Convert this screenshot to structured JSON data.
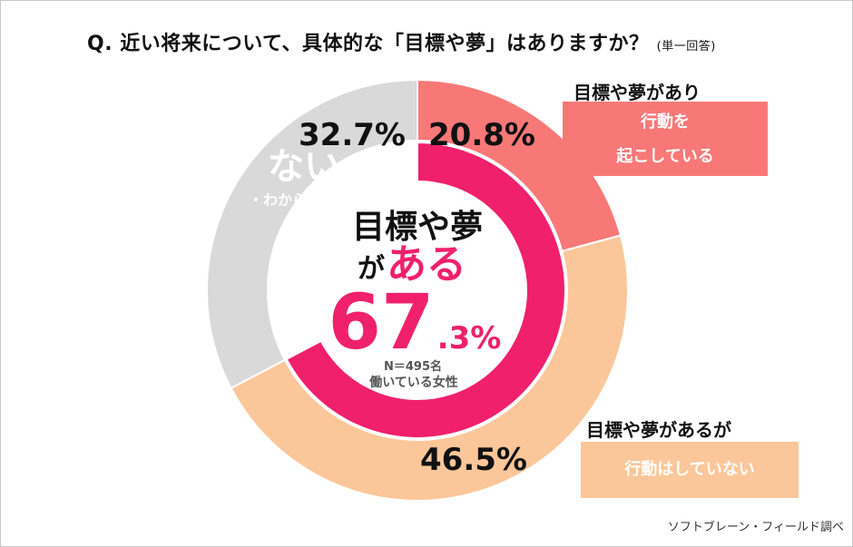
{
  "title": {
    "question": "Q.  近い将来について、具体的な「目標や夢」はありますか？",
    "note": "(単一回答)"
  },
  "chart_data": {
    "type": "pie",
    "variant": "double-ring donut",
    "outer_ring": [
      {
        "label": "目標や夢があり 行動を起こしている",
        "value": 20.8,
        "value_label": "20.8%",
        "color": "#f87878"
      },
      {
        "label": "目標や夢があるが 行動はしていない",
        "value": 46.5,
        "value_label": "46.5%",
        "color": "#fbc79a"
      },
      {
        "label": "ない・わからない",
        "value": 32.7,
        "value_label": "32.7%",
        "color": "#d9d9d9"
      }
    ],
    "inner_ring": [
      {
        "label": "目標や夢がある",
        "value": 67.3,
        "color": "#f0206c"
      },
      {
        "label": "ない・わからない",
        "value": 32.7,
        "color": "#ffffff"
      }
    ],
    "center": {
      "line1": "目標や夢",
      "line2_prefix": "が",
      "line2_emph": "ある",
      "big_number": "67",
      "decimal": ".3%",
      "sample": "N＝495名",
      "population": "働いている女性"
    },
    "no_label": {
      "main": "ない",
      "sub": "・わからない"
    }
  },
  "callouts": {
    "acting": {
      "head": "目標や夢があり",
      "box_line1": "行動を",
      "box_line2": "起こしている"
    },
    "not_acting": {
      "head": "目標や夢があるが",
      "box_line1": "行動はしていない"
    }
  },
  "credit": "ソフトブレーン・フィールド調べ"
}
